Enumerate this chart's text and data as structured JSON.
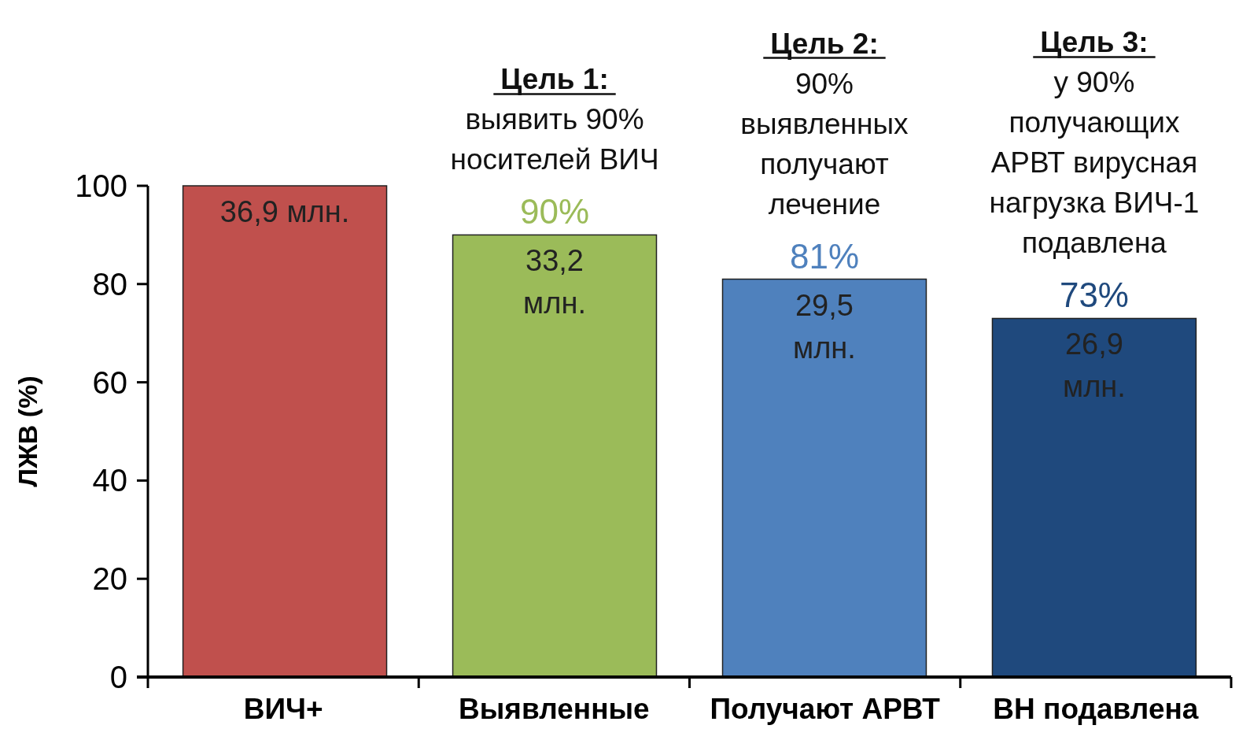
{
  "chart_data": {
    "type": "bar",
    "ylabel": "ЛЖВ (%)",
    "categories": [
      "ВИЧ+",
      "Выявленные",
      "Получают АРВТ",
      "ВН подавлена"
    ],
    "values": [
      100,
      90,
      81,
      73
    ],
    "colors": [
      "#c0504d",
      "#9bbb59",
      "#4f81bd",
      "#1f497d"
    ],
    "value_labels": [
      null,
      "90%",
      "81%",
      "73%"
    ],
    "ylim": [
      0,
      100
    ],
    "yticks": [
      0,
      20,
      40,
      60,
      80,
      100
    ],
    "grid": false,
    "annotations": [
      "Цель 1:\nвыявить 90%\nносителей ВИЧ",
      "Цель 2:\n90%\nвыявленных\nполучают\nлечение",
      "Цель 3:\nу 90%\nполучающих\nАРВТ вирусная\nнагрузка ВИЧ-1\nподавлена",
      {
        "text": "36,9 млн.",
        "x": "ВИЧ+",
        "y": 100
      },
      {
        "text": "33,2\nмлн.",
        "x": "Выявленные",
        "y": 90
      },
      {
        "text": "29,5\nмлн.",
        "x": "Получают АРВТ",
        "y": 81
      },
      {
        "text": "26,9\nмлн.",
        "x": "ВН подавлена",
        "y": 73
      }
    ]
  }
}
